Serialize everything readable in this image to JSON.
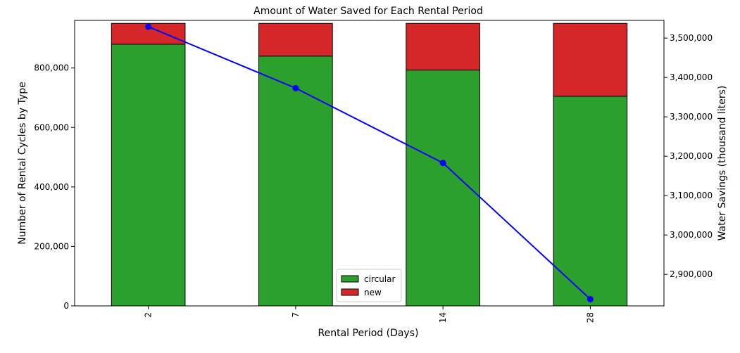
{
  "chart_data": {
    "type": "bar",
    "title": "Amount of Water Saved for Each Rental Period",
    "xlabel": "Rental Period (Days)",
    "ylabel": "Number of Rental Cycles by Type",
    "y2label": "Water Savings (thousand liters)",
    "categories": [
      "2",
      "7",
      "14",
      "28"
    ],
    "stacked": true,
    "series": [
      {
        "name": "circular",
        "type": "bar",
        "axis": "left",
        "color": "#2ca02c",
        "values": [
          880000,
          840000,
          793000,
          705000
        ]
      },
      {
        "name": "new",
        "type": "bar",
        "axis": "left",
        "color": "#d62728",
        "values": [
          70000,
          110000,
          157000,
          245000
        ]
      }
    ],
    "line_series": {
      "type": "line",
      "axis": "right",
      "color": "#0000ff",
      "values": [
        3529000,
        3373000,
        3183000,
        2837000
      ]
    },
    "ylim": [
      0,
      960000
    ],
    "y_ticks": [
      0,
      200000,
      400000,
      600000,
      800000
    ],
    "y_tick_labels": [
      "0",
      "200,000",
      "400,000",
      "600,000",
      "800,000"
    ],
    "y2lim": [
      2820000,
      3545000
    ],
    "y2_ticks": [
      2900000,
      3000000,
      3100000,
      3200000,
      3300000,
      3400000,
      3500000
    ],
    "y2_tick_labels": [
      "2,900,000",
      "3,000,000",
      "3,100,000",
      "3,200,000",
      "3,300,000",
      "3,400,000",
      "3,500,000"
    ],
    "legend": {
      "position": "lower-center",
      "entries": [
        "circular",
        "new"
      ]
    },
    "grid": false
  }
}
